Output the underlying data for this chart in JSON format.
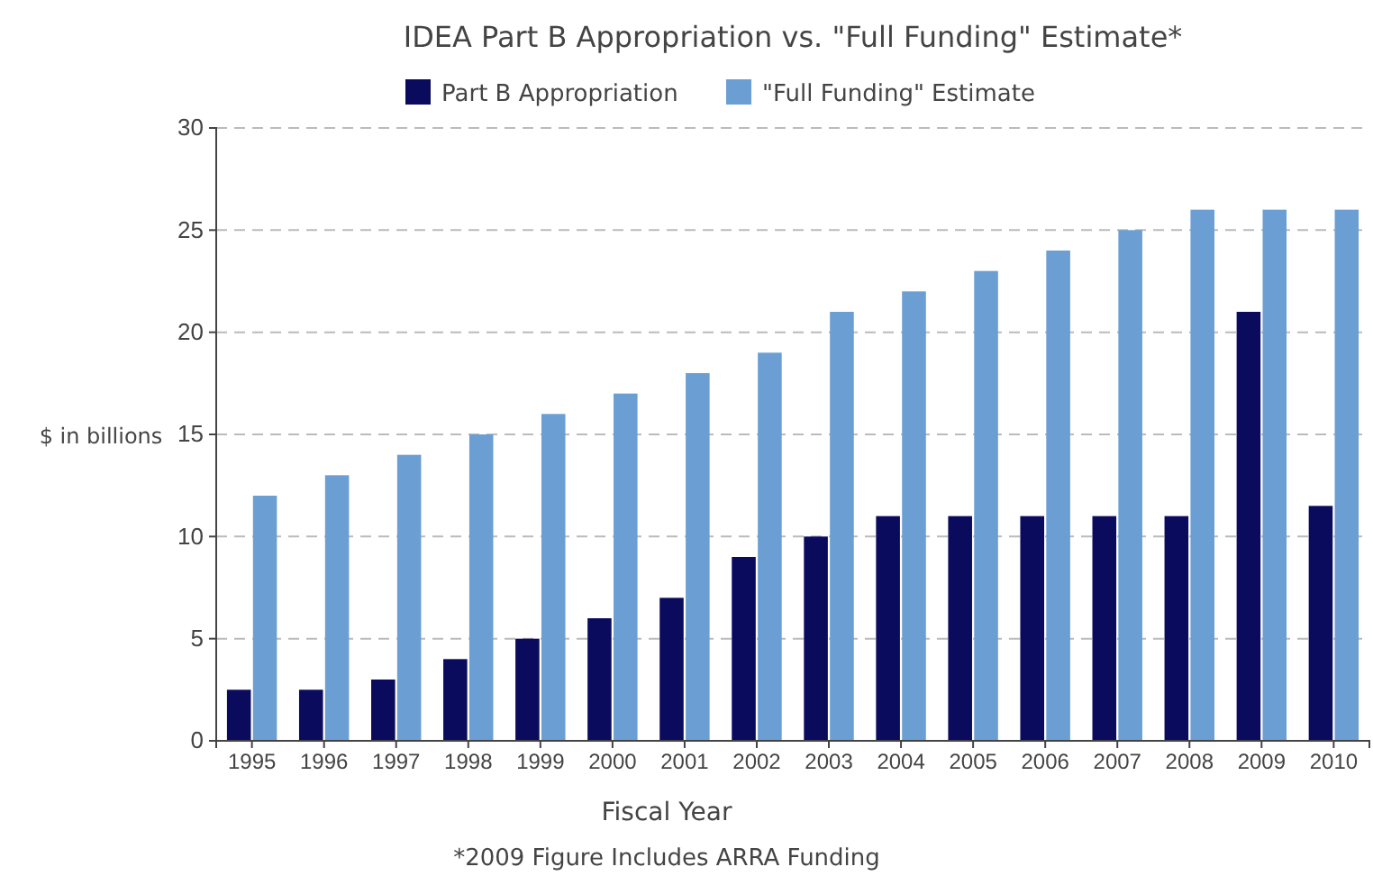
{
  "chart_data": {
    "type": "bar",
    "title": "IDEA Part B Appropriation vs. \"Full Funding\" Estimate*",
    "xlabel": "Fiscal Year",
    "ylabel": "$ in billions",
    "annotations": [
      "*2009 Figure Includes ARRA Funding"
    ],
    "categories": [
      "1995",
      "1996",
      "1997",
      "1998",
      "1999",
      "2000",
      "2001",
      "2002",
      "2003",
      "2004",
      "2005",
      "2006",
      "2007",
      "2008",
      "2009",
      "2010"
    ],
    "series": [
      {
        "name": "Part B Appropriation",
        "color": "#0b0b5e",
        "values": [
          2.5,
          2.5,
          3,
          4,
          5,
          6,
          7,
          9,
          10,
          11,
          11,
          11,
          11,
          11,
          21,
          11.5
        ]
      },
      {
        "name": "\"Full Funding\" Estimate",
        "color": "#6b9fd3",
        "values": [
          12,
          13,
          14,
          15,
          16,
          17,
          18,
          19,
          21,
          22,
          23,
          24,
          25,
          26,
          26,
          26
        ]
      }
    ],
    "ylim": [
      0,
      30
    ],
    "yticks": [
      0,
      5,
      10,
      15,
      20,
      25,
      30
    ],
    "grid": "y",
    "legend": "top"
  }
}
